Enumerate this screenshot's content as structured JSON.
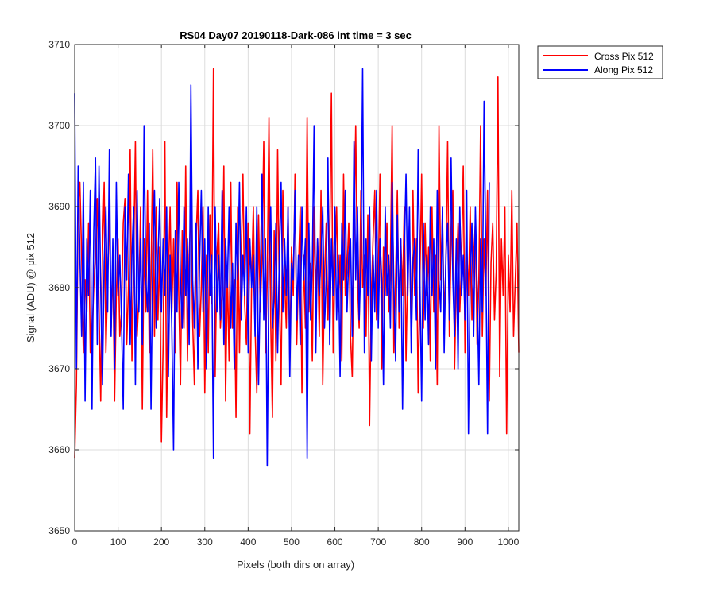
{
  "chart_data": {
    "type": "line",
    "title": "RS04 Day07 20190118-Dark-086 int time = 3 sec",
    "xlabel": "Pixels (both dirs on array)",
    "ylabel": "Signal (ADU) @ pix 512",
    "xlim": [
      0,
      1024
    ],
    "ylim": [
      3650,
      3710
    ],
    "xticks": [
      0,
      100,
      200,
      300,
      400,
      500,
      600,
      700,
      800,
      900,
      1000
    ],
    "yticks": [
      3650,
      3660,
      3670,
      3680,
      3690,
      3700,
      3710
    ],
    "grid": true,
    "legend_position": "outside-top-right",
    "x_step": 4,
    "series": [
      {
        "name": "Cross Pix 512",
        "color": "#ff0000",
        "values": [
          3659,
          3668,
          3690,
          3693,
          3684,
          3672,
          3681,
          3677,
          3688,
          3672,
          3674,
          3680,
          3684,
          3691,
          3678,
          3666,
          3684,
          3693,
          3672,
          3681,
          3690,
          3675,
          3683,
          3666,
          3679,
          3686,
          3674,
          3677,
          3688,
          3691,
          3673,
          3680,
          3697,
          3671,
          3684,
          3698,
          3674,
          3679,
          3690,
          3665,
          3686,
          3677,
          3692,
          3672,
          3681,
          3697,
          3674,
          3690,
          3676,
          3685,
          3661,
          3673,
          3698,
          3664,
          3681,
          3690,
          3677,
          3686,
          3672,
          3693,
          3679,
          3668,
          3687,
          3675,
          3695,
          3671,
          3684,
          3690,
          3676,
          3668,
          3686,
          3692,
          3674,
          3680,
          3690,
          3667,
          3684,
          3672,
          3689,
          3678,
          3707,
          3669,
          3684,
          3688,
          3675,
          3679,
          3695,
          3666,
          3682,
          3671,
          3693,
          3675,
          3681,
          3664,
          3690,
          3672,
          3684,
          3694,
          3678,
          3673,
          3688,
          3662,
          3681,
          3690,
          3675,
          3667,
          3689,
          3677,
          3684,
          3698,
          3672,
          3681,
          3701,
          3676,
          3664,
          3687,
          3671,
          3697,
          3679,
          3668,
          3692,
          3681,
          3675,
          3690,
          3671,
          3685,
          3679,
          3694,
          3673,
          3682,
          3690,
          3667,
          3684,
          3675,
          3701,
          3677,
          3683,
          3671,
          3690,
          3679,
          3686,
          3674,
          3692,
          3668,
          3681,
          3688,
          3676,
          3685,
          3704,
          3672,
          3683,
          3690,
          3677,
          3684,
          3671,
          3694,
          3679,
          3682,
          3688,
          3674,
          3669,
          3686,
          3700,
          3681,
          3675,
          3692,
          3680,
          3684,
          3674,
          3689,
          3663,
          3679,
          3686,
          3692,
          3676,
          3681,
          3694,
          3670,
          3685,
          3679,
          3688,
          3677,
          3683,
          3700,
          3672,
          3681,
          3692,
          3675,
          3686,
          3679,
          3690,
          3671,
          3683,
          3688,
          3674,
          3692,
          3679,
          3686,
          3667,
          3681,
          3694,
          3675,
          3688,
          3679,
          3685,
          3671,
          3690,
          3677,
          3684,
          3668,
          3700,
          3681,
          3689,
          3676,
          3683,
          3698,
          3674,
          3686,
          3692,
          3670,
          3681,
          3688,
          3677,
          3683,
          3695,
          3672,
          3685,
          3679,
          3690,
          3676,
          3684,
          3688,
          3673,
          3681,
          3700,
          3674,
          3686,
          3679,
          3692,
          3666,
          3683,
          3688,
          3676,
          3682,
          3706,
          3669,
          3686,
          3679,
          3690,
          3662,
          3684,
          3677,
          3692,
          3674,
          3681,
          3688,
          3672
        ]
      },
      {
        "name": "Along Pix 512",
        "color": "#0000ff",
        "values": [
          3704,
          3670,
          3695,
          3684,
          3674,
          3693,
          3666,
          3686,
          3679,
          3692,
          3665,
          3687,
          3696,
          3673,
          3695,
          3680,
          3668,
          3683,
          3690,
          3677,
          3697,
          3674,
          3686,
          3670,
          3693,
          3679,
          3684,
          3676,
          3665,
          3690,
          3681,
          3694,
          3673,
          3684,
          3690,
          3668,
          3692,
          3677,
          3686,
          3673,
          3700,
          3681,
          3677,
          3688,
          3665,
          3684,
          3692,
          3675,
          3683,
          3691,
          3677,
          3686,
          3679,
          3690,
          3669,
          3684,
          3675,
          3660,
          3687,
          3677,
          3693,
          3681,
          3675,
          3690,
          3679,
          3686,
          3673,
          3705,
          3681,
          3675,
          3688,
          3670,
          3683,
          3692,
          3677,
          3686,
          3670,
          3690,
          3679,
          3684,
          3659,
          3690,
          3677,
          3684,
          3676,
          3692,
          3673,
          3686,
          3680,
          3690,
          3675,
          3683,
          3670,
          3688,
          3681,
          3693,
          3676,
          3684,
          3679,
          3690,
          3672,
          3686,
          3680,
          3684,
          3674,
          3690,
          3668,
          3681,
          3694,
          3676,
          3686,
          3658,
          3683,
          3690,
          3675,
          3679,
          3688,
          3672,
          3684,
          3693,
          3677,
          3686,
          3679,
          3690,
          3669,
          3683,
          3681,
          3692,
          3676,
          3684,
          3673,
          3690,
          3681,
          3686,
          3659,
          3688,
          3676,
          3683,
          3700,
          3672,
          3686,
          3679,
          3684,
          3690,
          3675,
          3681,
          3696,
          3673,
          3686,
          3679,
          3690,
          3676,
          3684,
          3669,
          3688,
          3681,
          3692,
          3677,
          3684,
          3686,
          3674,
          3698,
          3681,
          3690,
          3676,
          3683,
          3707,
          3672,
          3686,
          3679,
          3690,
          3671,
          3684,
          3677,
          3692,
          3675,
          3686,
          3681,
          3668,
          3690,
          3679,
          3684,
          3675,
          3693,
          3680,
          3671,
          3689,
          3677,
          3686,
          3665,
          3684,
          3694,
          3679,
          3690,
          3672,
          3683,
          3686,
          3676,
          3697,
          3681,
          3666,
          3688,
          3676,
          3684,
          3673,
          3690,
          3679,
          3686,
          3670,
          3692,
          3681,
          3677,
          3690,
          3672,
          3684,
          3688,
          3676,
          3696,
          3681,
          3674,
          3686,
          3670,
          3690,
          3679,
          3684,
          3676,
          3692,
          3662,
          3681,
          3688,
          3674,
          3690,
          3680,
          3668,
          3686,
          3677,
          3703,
          3684,
          3662,
          3693
        ]
      }
    ]
  }
}
